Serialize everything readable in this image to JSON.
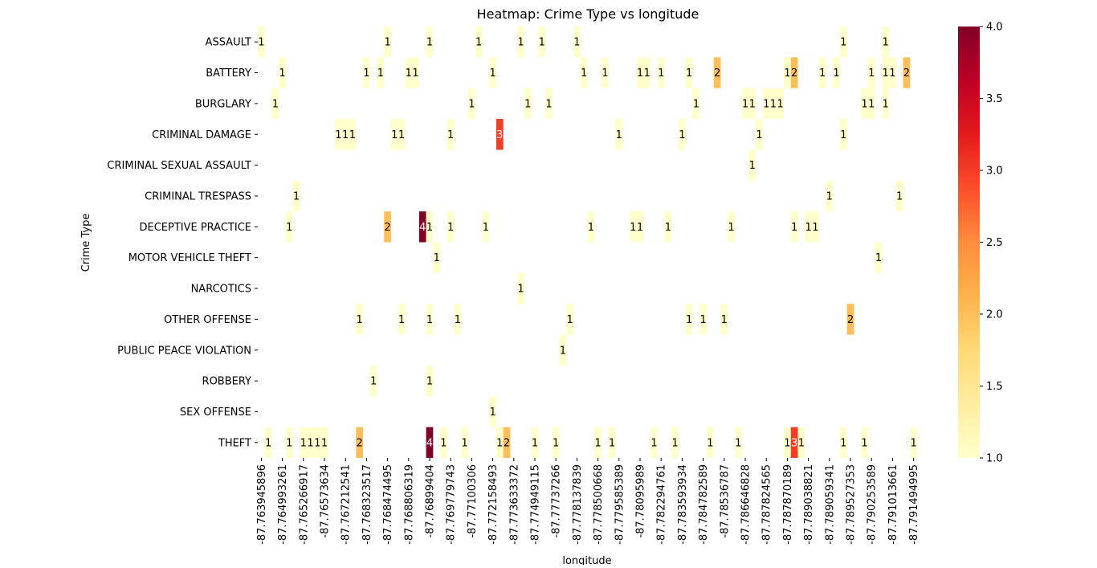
{
  "chart_data": {
    "type": "heatmap",
    "title": "Heatmap: Crime Type vs longitude",
    "xlabel": "longitude",
    "ylabel": "Crime Type",
    "colormap": "YlOrRd",
    "colors": [
      "#ffffcc",
      "#ffeda0",
      "#fed976",
      "#feb24c",
      "#fd8d3c",
      "#fc4e2a",
      "#e31a1c",
      "#bd0026",
      "#800026"
    ],
    "value_range": [
      1.0,
      4.0
    ],
    "x_tick_labels": [
      "-87.763945896",
      "-87.764993261",
      "-87.765266917",
      "-87.76573634",
      "-87.767212541",
      "-87.768323517",
      "-87.768474495",
      "-87.768806319",
      "-87.76899404",
      "-87.769779743",
      "-87.77100306",
      "-87.772158493",
      "-87.773633372",
      "-87.774949115",
      "-87.77737266",
      "-87.778137839",
      "-87.778500668",
      "-87.779585389",
      "-87.78095989",
      "-87.782294761",
      "-87.783593934",
      "-87.784782589",
      "-87.78536787",
      "-87.786646828",
      "-87.787824565",
      "-87.787870189",
      "-87.789038821",
      "-87.789059341",
      "-87.789527353",
      "-87.790253589",
      "-87.791013661",
      "-87.791494995"
    ],
    "rows": [
      "ASSAULT",
      "BATTERY",
      "BURGLARY",
      "CRIMINAL DAMAGE",
      "CRIMINAL SEXUAL ASSAULT",
      "CRIMINAL TRESPASS",
      "DECEPTIVE PRACTICE",
      "MOTOR VEHICLE THEFT",
      "NARCOTICS",
      "OTHER OFFENSE",
      "PUBLIC PEACE VIOLATION",
      "ROBBERY",
      "SEX OFFENSE",
      "THEFT"
    ],
    "colorbar_ticks": [
      "1.0",
      "1.5",
      "2.0",
      "2.5",
      "3.0",
      "3.5",
      "4.0"
    ],
    "cells": [
      {
        "row": 0,
        "col": 0,
        "value": 1
      },
      {
        "row": 0,
        "col": 18,
        "value": 1
      },
      {
        "row": 0,
        "col": 24,
        "value": 1
      },
      {
        "row": 0,
        "col": 31,
        "value": 1
      },
      {
        "row": 0,
        "col": 37,
        "value": 1
      },
      {
        "row": 0,
        "col": 40,
        "value": 1
      },
      {
        "row": 0,
        "col": 45,
        "value": 1
      },
      {
        "row": 0,
        "col": 83,
        "value": 1
      },
      {
        "row": 0,
        "col": 89,
        "value": 1
      },
      {
        "row": 1,
        "col": 3,
        "value": 1
      },
      {
        "row": 1,
        "col": 15,
        "value": 1
      },
      {
        "row": 1,
        "col": 17,
        "value": 1
      },
      {
        "row": 1,
        "col": 21,
        "value": 1
      },
      {
        "row": 1,
        "col": 22,
        "value": 1
      },
      {
        "row": 1,
        "col": 33,
        "value": 1
      },
      {
        "row": 1,
        "col": 46,
        "value": 1
      },
      {
        "row": 1,
        "col": 49,
        "value": 1
      },
      {
        "row": 1,
        "col": 54,
        "value": 1
      },
      {
        "row": 1,
        "col": 55,
        "value": 1
      },
      {
        "row": 1,
        "col": 57,
        "value": 1
      },
      {
        "row": 1,
        "col": 61,
        "value": 1
      },
      {
        "row": 1,
        "col": 65,
        "value": 2
      },
      {
        "row": 1,
        "col": 75,
        "value": 1
      },
      {
        "row": 1,
        "col": 76,
        "value": 2
      },
      {
        "row": 1,
        "col": 80,
        "value": 1
      },
      {
        "row": 1,
        "col": 82,
        "value": 1
      },
      {
        "row": 1,
        "col": 87,
        "value": 1
      },
      {
        "row": 1,
        "col": 89,
        "value": 1
      },
      {
        "row": 1,
        "col": 90,
        "value": 1
      },
      {
        "row": 1,
        "col": 92,
        "value": 2
      },
      {
        "row": 2,
        "col": 2,
        "value": 1
      },
      {
        "row": 2,
        "col": 30,
        "value": 1
      },
      {
        "row": 2,
        "col": 38,
        "value": 1
      },
      {
        "row": 2,
        "col": 41,
        "value": 1
      },
      {
        "row": 2,
        "col": 62,
        "value": 1
      },
      {
        "row": 2,
        "col": 69,
        "value": 1
      },
      {
        "row": 2,
        "col": 70,
        "value": 1
      },
      {
        "row": 2,
        "col": 72,
        "value": 1
      },
      {
        "row": 2,
        "col": 73,
        "value": 1
      },
      {
        "row": 2,
        "col": 74,
        "value": 1
      },
      {
        "row": 2,
        "col": 86,
        "value": 1
      },
      {
        "row": 2,
        "col": 87,
        "value": 1
      },
      {
        "row": 2,
        "col": 89,
        "value": 1
      },
      {
        "row": 3,
        "col": 11,
        "value": 1
      },
      {
        "row": 3,
        "col": 12,
        "value": 1
      },
      {
        "row": 3,
        "col": 13,
        "value": 1
      },
      {
        "row": 3,
        "col": 19,
        "value": 1
      },
      {
        "row": 3,
        "col": 20,
        "value": 1
      },
      {
        "row": 3,
        "col": 27,
        "value": 1
      },
      {
        "row": 3,
        "col": 34,
        "value": 3
      },
      {
        "row": 3,
        "col": 51,
        "value": 1
      },
      {
        "row": 3,
        "col": 60,
        "value": 1
      },
      {
        "row": 3,
        "col": 71,
        "value": 1
      },
      {
        "row": 3,
        "col": 83,
        "value": 1
      },
      {
        "row": 4,
        "col": 70,
        "value": 1
      },
      {
        "row": 5,
        "col": 5,
        "value": 1
      },
      {
        "row": 5,
        "col": 81,
        "value": 1
      },
      {
        "row": 5,
        "col": 91,
        "value": 1
      },
      {
        "row": 6,
        "col": 4,
        "value": 1
      },
      {
        "row": 6,
        "col": 18,
        "value": 2
      },
      {
        "row": 6,
        "col": 23,
        "value": 4
      },
      {
        "row": 6,
        "col": 24,
        "value": 1
      },
      {
        "row": 6,
        "col": 27,
        "value": 1
      },
      {
        "row": 6,
        "col": 32,
        "value": 1
      },
      {
        "row": 6,
        "col": 47,
        "value": 1
      },
      {
        "row": 6,
        "col": 53,
        "value": 1
      },
      {
        "row": 6,
        "col": 54,
        "value": 1
      },
      {
        "row": 6,
        "col": 58,
        "value": 1
      },
      {
        "row": 6,
        "col": 67,
        "value": 1
      },
      {
        "row": 6,
        "col": 76,
        "value": 1
      },
      {
        "row": 6,
        "col": 78,
        "value": 1
      },
      {
        "row": 6,
        "col": 79,
        "value": 1
      },
      {
        "row": 7,
        "col": 25,
        "value": 1
      },
      {
        "row": 7,
        "col": 88,
        "value": 1
      },
      {
        "row": 8,
        "col": 37,
        "value": 1
      },
      {
        "row": 9,
        "col": 14,
        "value": 1
      },
      {
        "row": 9,
        "col": 20,
        "value": 1
      },
      {
        "row": 9,
        "col": 24,
        "value": 1
      },
      {
        "row": 9,
        "col": 28,
        "value": 1
      },
      {
        "row": 9,
        "col": 44,
        "value": 1
      },
      {
        "row": 9,
        "col": 61,
        "value": 1
      },
      {
        "row": 9,
        "col": 63,
        "value": 1
      },
      {
        "row": 9,
        "col": 66,
        "value": 1
      },
      {
        "row": 9,
        "col": 84,
        "value": 2
      },
      {
        "row": 10,
        "col": 43,
        "value": 1
      },
      {
        "row": 11,
        "col": 16,
        "value": 1
      },
      {
        "row": 11,
        "col": 24,
        "value": 1
      },
      {
        "row": 12,
        "col": 33,
        "value": 1
      },
      {
        "row": 13,
        "col": 1,
        "value": 1
      },
      {
        "row": 13,
        "col": 4,
        "value": 1
      },
      {
        "row": 13,
        "col": 6,
        "value": 1
      },
      {
        "row": 13,
        "col": 7,
        "value": 1
      },
      {
        "row": 13,
        "col": 8,
        "value": 1
      },
      {
        "row": 13,
        "col": 9,
        "value": 1
      },
      {
        "row": 13,
        "col": 14,
        "value": 2
      },
      {
        "row": 13,
        "col": 24,
        "value": 4
      },
      {
        "row": 13,
        "col": 26,
        "value": 1
      },
      {
        "row": 13,
        "col": 29,
        "value": 1
      },
      {
        "row": 13,
        "col": 34,
        "value": 1
      },
      {
        "row": 13,
        "col": 35,
        "value": 2
      },
      {
        "row": 13,
        "col": 39,
        "value": 1
      },
      {
        "row": 13,
        "col": 42,
        "value": 1
      },
      {
        "row": 13,
        "col": 48,
        "value": 1
      },
      {
        "row": 13,
        "col": 50,
        "value": 1
      },
      {
        "row": 13,
        "col": 56,
        "value": 1
      },
      {
        "row": 13,
        "col": 59,
        "value": 1
      },
      {
        "row": 13,
        "col": 64,
        "value": 1
      },
      {
        "row": 13,
        "col": 68,
        "value": 1
      },
      {
        "row": 13,
        "col": 75,
        "value": 1
      },
      {
        "row": 13,
        "col": 76,
        "value": 3
      },
      {
        "row": 13,
        "col": 77,
        "value": 1
      },
      {
        "row": 13,
        "col": 83,
        "value": 1
      },
      {
        "row": 13,
        "col": 86,
        "value": 1
      },
      {
        "row": 13,
        "col": 93,
        "value": 1
      }
    ]
  }
}
